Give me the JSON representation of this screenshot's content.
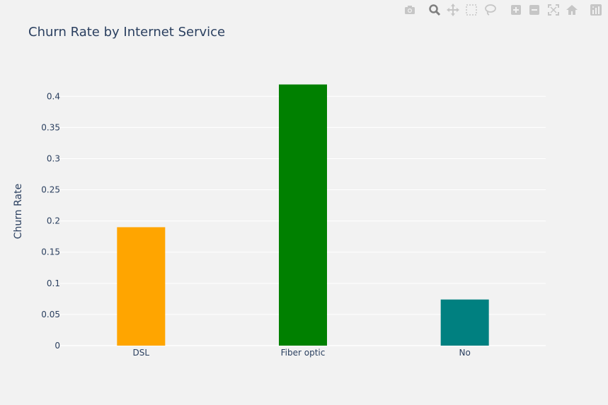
{
  "modebar": {
    "buttons": [
      {
        "name": "camera-icon"
      },
      {
        "name": "zoom-icon"
      },
      {
        "name": "pan-icon"
      },
      {
        "name": "box-select-icon"
      },
      {
        "name": "lasso-icon"
      },
      {
        "name": "zoom-in-icon"
      },
      {
        "name": "zoom-out-icon"
      },
      {
        "name": "autoscale-icon"
      },
      {
        "name": "home-icon"
      },
      {
        "name": "plotly-logo-icon"
      }
    ],
    "color": "#c6c6c6",
    "active_color": "#7f7f7f"
  },
  "chart_data": {
    "type": "bar",
    "title": "Churn Rate by Internet Service",
    "xlabel": "",
    "ylabel": "Churn Rate",
    "categories": [
      "DSL",
      "Fiber optic",
      "No"
    ],
    "values": [
      0.19,
      0.419,
      0.074
    ],
    "colors": [
      "#ffa500",
      "#008000",
      "#008080"
    ],
    "ylim": [
      0,
      0.44
    ],
    "yticks": [
      0,
      0.05,
      0.1,
      0.15,
      0.2,
      0.25,
      0.3,
      0.35,
      0.4
    ],
    "ytick_labels": [
      "0",
      "0.05",
      "0.1",
      "0.15",
      "0.2",
      "0.25",
      "0.3",
      "0.35",
      "0.4"
    ],
    "grid": true,
    "legend": "none"
  }
}
